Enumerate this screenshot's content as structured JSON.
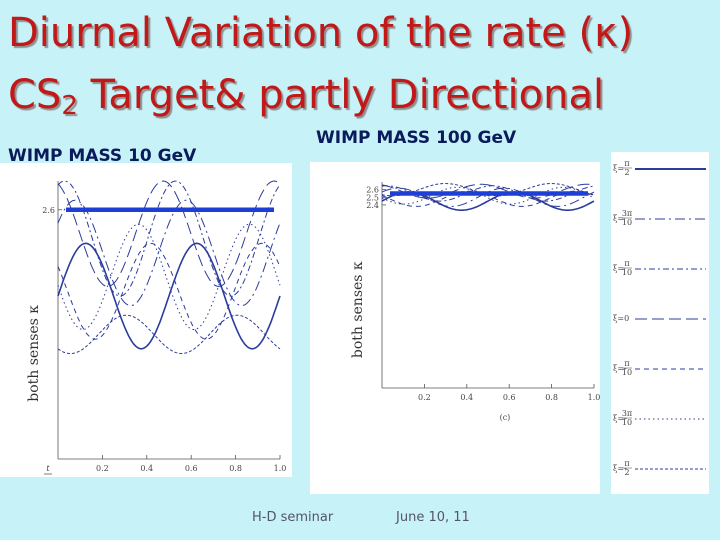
{
  "slide": {
    "title_line1": "Diurnal Variation of the rate (κ)",
    "title_line2_pre": "CS",
    "title_line2_sub": "2",
    "title_line2_post": " Target& partly Directional",
    "left_heading": "WIMP MASS 10 GeV",
    "right_heading": "WIMP MASS 100 GeV",
    "footer_event": "H-D seminar",
    "footer_date": "June 10, 11"
  },
  "colors": {
    "title": "#c21818",
    "curve": "#2b3c9c",
    "highlight": "#1e3fd6"
  },
  "chart_data": [
    {
      "type": "line",
      "title": "WIMP MASS 10 GeV",
      "xlabel": "t / T",
      "ylabel": "both senses κ",
      "xlim": [
        0,
        1
      ],
      "ylim": [
        0,
        2.9
      ],
      "x_ticks": [
        "0.2",
        "0.4",
        "0.6",
        "0.8",
        "1.0"
      ],
      "y_ticks": [
        "2.6"
      ],
      "highlight_level": 2.6,
      "series": [
        {
          "name": "ξ = π/2",
          "style": "solid",
          "mean": 1.7,
          "amp": 0.55,
          "phase": 0.0
        },
        {
          "name": "ξ = 3π/10",
          "style": "dashdot",
          "mean": 2.15,
          "amp": 0.55,
          "phase": 0.6
        },
        {
          "name": "ξ = π/10",
          "style": "dashdot2",
          "mean": 2.3,
          "amp": 0.6,
          "phase": 1.2
        },
        {
          "name": "ξ = 0",
          "style": "longdash",
          "mean": 2.35,
          "amp": 0.55,
          "phase": 1.9
        },
        {
          "name": "ξ = -π/10",
          "style": "shortdash",
          "mean": 1.75,
          "amp": 0.5,
          "phase": 2.6
        },
        {
          "name": "ξ = -3π/10",
          "style": "dotted",
          "mean": 1.9,
          "amp": 0.55,
          "phase": 3.3
        },
        {
          "name": "ξ = -π/2",
          "style": "dense",
          "mean": 1.3,
          "amp": 0.2,
          "phase": 4.0
        }
      ]
    },
    {
      "type": "line",
      "title": "WIMP MASS 100 GeV",
      "xlabel": "",
      "ylabel": "both senses κ",
      "panel_label": "(c)",
      "xlim": [
        0,
        1
      ],
      "ylim": [
        0,
        2.7
      ],
      "x_ticks": [
        "0.2",
        "0.4",
        "0.6",
        "0.8",
        "1.0"
      ],
      "y_ticks": [
        "2.6",
        "2.5",
        "2.4"
      ],
      "highlight_level": 2.55,
      "series": [
        {
          "name": "ξ = π/2",
          "style": "solid",
          "mean": 2.45,
          "amp": 0.12,
          "phase": 0.0
        },
        {
          "name": "ξ = 3π/10",
          "style": "dashdot",
          "mean": 2.5,
          "amp": 0.12,
          "phase": 0.6
        },
        {
          "name": "ξ = π/10",
          "style": "dashdot2",
          "mean": 2.55,
          "amp": 0.1,
          "phase": 1.3
        },
        {
          "name": "ξ = 0",
          "style": "longdash",
          "mean": 2.58,
          "amp": 0.09,
          "phase": 2.0
        },
        {
          "name": "ξ = -π/10",
          "style": "shortdash",
          "mean": 2.48,
          "amp": 0.1,
          "phase": 2.7
        },
        {
          "name": "ξ = -3π/10",
          "style": "dotted",
          "mean": 2.52,
          "amp": 0.11,
          "phase": 3.4
        },
        {
          "name": "ξ = -π/2",
          "style": "dense",
          "mean": 2.6,
          "amp": 0.08,
          "phase": 4.1
        }
      ]
    }
  ],
  "legend": {
    "entries": [
      {
        "num": "π",
        "den": "2",
        "prefix": "ξ=",
        "style": "solid"
      },
      {
        "num": "3π",
        "den": "10",
        "prefix": "ξ=",
        "style": "dashdot"
      },
      {
        "num": "π",
        "den": "10",
        "prefix": "ξ=",
        "style": "dashdot2"
      },
      {
        "num": "",
        "den": "",
        "prefix": "ξ=0",
        "style": "longdash"
      },
      {
        "num": "π",
        "den": "10",
        "prefix": "ξ=-",
        "style": "shortdash"
      },
      {
        "num": "3π",
        "den": "10",
        "prefix": "ξ=-",
        "style": "dotted"
      },
      {
        "num": "π",
        "den": "2",
        "prefix": "ξ=-",
        "style": "dense"
      }
    ]
  }
}
